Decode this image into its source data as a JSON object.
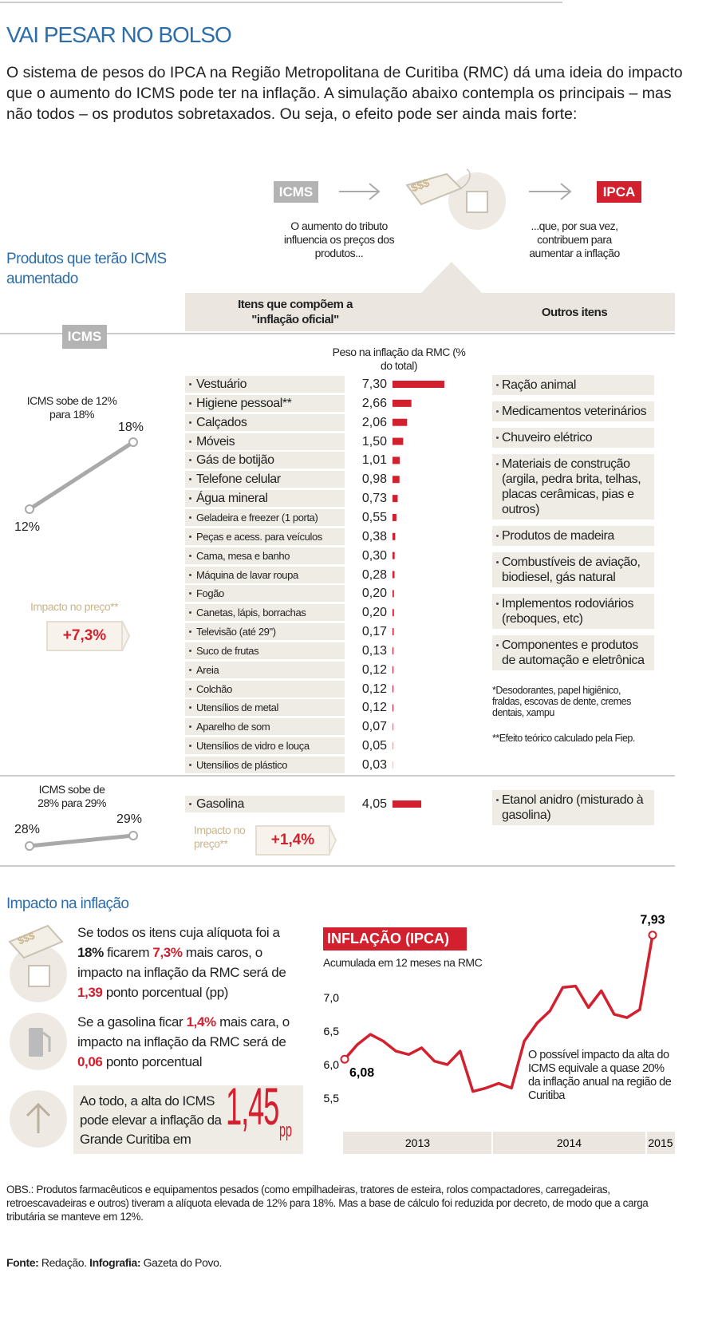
{
  "header": {
    "title": "VAI PESAR NO BOLSO",
    "intro": "O sistema de pesos do IPCA na Região Metropolitana de Curitiba (RMC) dá uma ideia do impacto que o aumento do ICMS pode ter na inflação. A simulação abaixo contempla os principais – mas não todos – os produtos sobretaxados. Ou seja, o efeito pode ser ainda mais forte:"
  },
  "flow": {
    "left_tag": "ICMS",
    "left_caption": "O aumento do tributo influencia os preços dos produtos...",
    "price_tag": "$$$",
    "right_tag": "IPCA",
    "right_caption": "...que, por sua vez, contribuem para aumentar a inflação"
  },
  "section1": {
    "title": "Produtos que terão ICMS aumentado",
    "icms_tag": "ICMS",
    "col_items": "Itens que compõem a \"inflação oficial\"",
    "col_other": "Outros itens",
    "weight_header": "Peso na inflação da RMC (% do total)"
  },
  "group1": {
    "rate_caption": "ICMS sobe de 12% para 18%",
    "from": "12%",
    "to": "18%",
    "impact_label": "Impacto no preço**",
    "impact": "+7,3%",
    "items": {
      "categories": [
        "Vestuário",
        "Higiene pessoal**",
        "Calçados",
        "Móveis",
        "Gás de botijão",
        "Telefone celular",
        "Água mineral",
        "Geladeira e freezer (1 porta)",
        "Peças e acess. para veículos",
        "Cama, mesa e banho",
        "Máquina de lavar roupa",
        "Fogão",
        "Canetas, lápis, borrachas",
        "Televisão (até 29\")",
        "Suco de frutas",
        "Areia",
        "Colchão",
        "Utensílios de metal",
        "Aparelho de som",
        "Utensílios de vidro e louça",
        "Utensílios de plástico"
      ],
      "values": [
        7.3,
        2.66,
        2.06,
        1.5,
        1.01,
        0.98,
        0.73,
        0.55,
        0.38,
        0.3,
        0.28,
        0.2,
        0.2,
        0.17,
        0.13,
        0.12,
        0.12,
        0.12,
        0.07,
        0.05,
        0.03
      ],
      "value_labels": [
        "7,30",
        "2,66",
        "2,06",
        "1,50",
        "1,01",
        "0,98",
        "0,73",
        "0,55",
        "0,38",
        "0,30",
        "0,28",
        "0,20",
        "0,20",
        "0,17",
        "0,13",
        "0,12",
        "0,12",
        "0,12",
        "0,07",
        "0,05",
        "0,03"
      ],
      "color": "#d2202f"
    },
    "others": [
      "Ração animal",
      "Medicamentos veterinários",
      "Chuveiro elétrico",
      "Materiais de construção (argila, pedra brita, telhas, placas cerâmicas, pias e outros)",
      "Produtos de madeira",
      "Combustíveis de aviação, biodiesel, gás natural",
      "Implementos rodoviários (reboques, etc)",
      "Componentes e produtos de automação e eletrônica"
    ],
    "notes": [
      "*Desodorantes, papel higiênico, fraldas, escovas de dente, cremes dentais, xampu",
      "**Efeito teórico calculado pela Fiep."
    ]
  },
  "group2": {
    "rate_caption": "ICMS sobe de 28% para 29%",
    "from": "28%",
    "to": "29%",
    "impact_label": "Impacto no preço**",
    "impact": "+1,4%",
    "items": {
      "categories": [
        "Gasolina"
      ],
      "values": [
        4.05
      ],
      "value_labels": [
        "4,05"
      ],
      "color": "#d2202f"
    },
    "others": [
      "Etanol anidro (misturado à gasolina)"
    ]
  },
  "section2": {
    "title": "Impacto na inflação",
    "price_tag": "$$$",
    "statements": [
      [
        {
          "t": "Se todos os itens cuja alíquota foi a ",
          "s": "n"
        },
        {
          "t": "18%",
          "s": "b"
        },
        {
          "t": " ficarem ",
          "s": "n"
        },
        {
          "t": "7,3%",
          "s": "r"
        },
        {
          "t": " mais caros, o impacto na inflação da RMC será de ",
          "s": "n"
        },
        {
          "t": "1,39",
          "s": "r"
        },
        {
          "t": " ponto porcentual (pp)",
          "s": "n"
        }
      ],
      [
        {
          "t": "Se a gasolina ficar ",
          "s": "n"
        },
        {
          "t": "1,4%",
          "s": "r"
        },
        {
          "t": " mais cara, o impacto na inflação da RMC será de ",
          "s": "n"
        },
        {
          "t": "0,06",
          "s": "r"
        },
        {
          "t": " ponto porcentual",
          "s": "n"
        }
      ]
    ],
    "total_text": "Ao todo, a alta do ICMS pode elevar a inflação da Grande Curitiba em",
    "total": "1,45",
    "total_unit": "pp"
  },
  "chart_data": {
    "type": "line",
    "title": "INFLAÇÃO (IPCA)",
    "subtitle": "Acumulada em 12 meses na RMC",
    "annotation": "O possível impacto da alta do ICMS equivale a quase 20% da inflação anual na região de Curitiba",
    "categories": [
      "2013",
      null,
      null,
      null,
      null,
      null,
      null,
      null,
      null,
      null,
      null,
      null,
      "2014",
      null,
      null,
      null,
      null,
      null,
      null,
      null,
      null,
      null,
      null,
      null,
      "2015"
    ],
    "values": [
      6.08,
      6.3,
      6.45,
      6.35,
      6.2,
      6.15,
      6.25,
      6.05,
      6.0,
      6.2,
      5.6,
      5.65,
      5.72,
      5.65,
      6.35,
      6.62,
      6.8,
      7.15,
      7.17,
      6.85,
      7.1,
      6.75,
      6.7,
      6.82,
      7.93
    ],
    "value_labels": [
      "6,08",
      null,
      null,
      null,
      null,
      null,
      null,
      null,
      null,
      null,
      null,
      null,
      null,
      null,
      null,
      null,
      null,
      null,
      null,
      null,
      null,
      null,
      null,
      null,
      "7,93"
    ],
    "color": "#d2202f",
    "ylim": [
      5.0,
      8.2
    ],
    "yticks": [
      {
        "value": 5.5,
        "label": "5,5"
      },
      {
        "value": 6.0,
        "label": "6,0"
      },
      {
        "value": 6.5,
        "label": "6,5"
      },
      {
        "value": 7.0,
        "label": "7,0"
      }
    ],
    "grid": false
  },
  "footer": {
    "obs": "OBS.: Produtos farmacêuticos e equipamentos pesados (como empilhadeiras, tratores de esteira, rolos compactadores, carregadeiras, retroescavadeiras e outros) tiveram a alíquota elevada de 12% para 18%. Mas a base de cálculo foi reduzida por decreto, de modo que a carga tributária se manteve em 12%.",
    "source_label": "Fonte:",
    "source": "Redação.",
    "graphic_label": "Infografia:",
    "graphic": "Gazeta do Povo."
  }
}
